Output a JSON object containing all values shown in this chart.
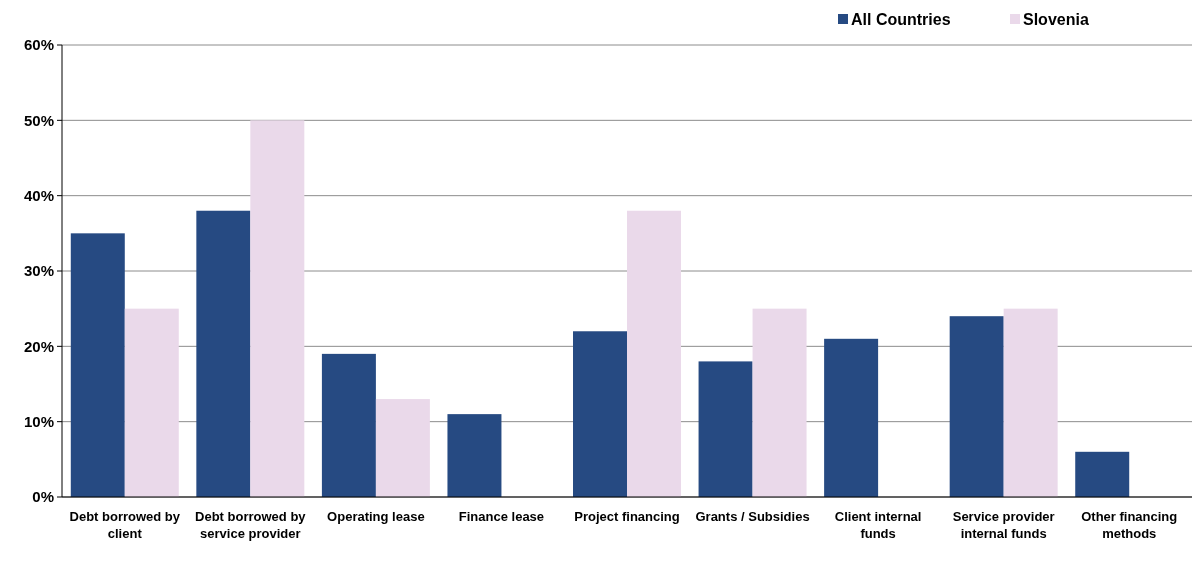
{
  "chart_data": {
    "type": "bar",
    "categories": [
      "Debt borrowed by client",
      "Debt borrowed by service provider",
      "Operating lease",
      "Finance lease",
      "Project financing",
      "Grants / Subsidies",
      "Client internal funds",
      "Service provider internal funds",
      "Other financing methods"
    ],
    "series": [
      {
        "name": "All Countries",
        "color": "#264a82",
        "values": [
          35,
          38,
          19,
          11,
          22,
          18,
          21,
          24,
          6
        ]
      },
      {
        "name": "Slovenia",
        "color": "#ead9ea",
        "values": [
          25,
          50,
          13,
          0,
          38,
          25,
          0,
          25,
          0
        ]
      }
    ],
    "ylim": [
      0,
      60
    ],
    "yticks": [
      {
        "value": 0,
        "label": "0%"
      },
      {
        "value": 10,
        "label": "10%"
      },
      {
        "value": 20,
        "label": "20%"
      },
      {
        "value": 30,
        "label": "30%"
      },
      {
        "value": 40,
        "label": "40%"
      },
      {
        "value": 50,
        "label": "50%"
      },
      {
        "value": 60,
        "label": "60%"
      }
    ],
    "grid": "y",
    "legend": "top right"
  }
}
